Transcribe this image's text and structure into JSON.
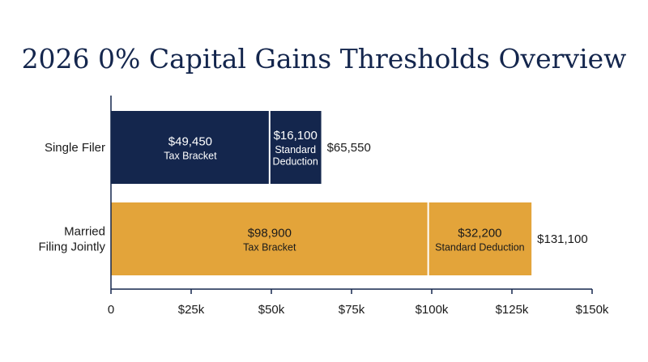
{
  "chart_data": {
    "type": "bar",
    "orientation": "horizontal",
    "stacked": true,
    "title": "2026 0% Capital Gains Thresholds Overview",
    "categories": [
      {
        "lines": [
          "Single Filer"
        ]
      },
      {
        "lines": [
          "Married",
          "Filing Jointly"
        ]
      }
    ],
    "series": [
      {
        "color": "#14264d",
        "text_color": "#ffffff",
        "values": [
          49450,
          98900
        ],
        "value_labels": [
          "$49,450",
          "$98,900"
        ],
        "segment_labels": [
          [
            "Tax Bracket"
          ],
          [
            "Tax Bracket"
          ]
        ]
      },
      {
        "colors": [
          "#14264d",
          "#e3a43a"
        ],
        "text_colors": [
          "#ffffff",
          "#1a1a1a"
        ],
        "values": [
          16100,
          32200
        ],
        "value_labels": [
          "$16,100",
          "$32,200"
        ],
        "segment_labels": [
          [
            "Standard",
            "Deduction"
          ],
          [
            "Standard Deduction"
          ]
        ]
      }
    ],
    "bar_colors": [
      "#14264d",
      "#e3a43a"
    ],
    "first_series_text_colors": [
      "#ffffff",
      "#1a1a1a"
    ],
    "totals": [
      65550,
      131100
    ],
    "total_labels": [
      "$65,550",
      "$131,100"
    ],
    "xlim": [
      0,
      150000
    ],
    "xticks": [
      0,
      25000,
      50000,
      75000,
      100000,
      125000,
      150000
    ],
    "xtick_labels": [
      "0",
      "$25k",
      "$50k",
      "$75k",
      "$100k",
      "$125k",
      "$150k"
    ],
    "xlabel": "",
    "ylabel": "",
    "grid": false,
    "legend": false,
    "axis_color": "#14264d"
  }
}
